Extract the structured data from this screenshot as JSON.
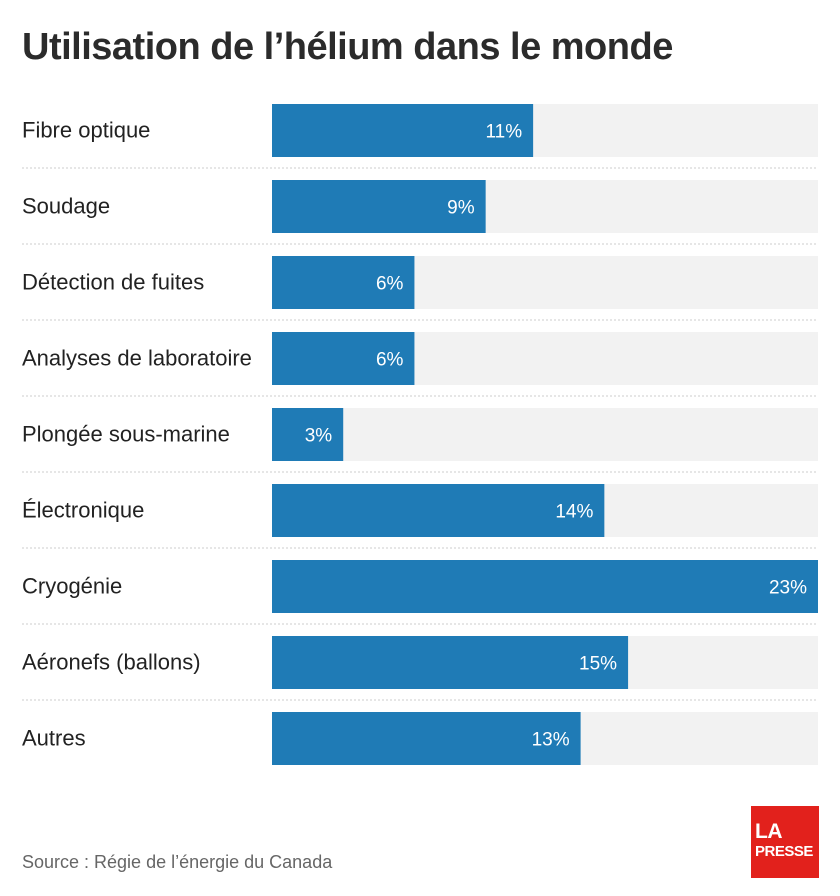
{
  "title": "Utilisation de l’hélium dans le monde",
  "source": "Source : Régie de l’énergie du Canada",
  "logo": {
    "line1": "LA",
    "line2": "PRESSE"
  },
  "colors": {
    "bar": "#1f7bb6",
    "track": "#f2f2f2",
    "divider": "#cccccc",
    "logo": "#e2211c"
  },
  "chart_data": {
    "type": "bar",
    "orientation": "horizontal",
    "categories": [
      "Fibre optique",
      "Soudage",
      "Détection de fuites",
      "Analyses de laboratoire",
      "Plongée sous-marine",
      "Électronique",
      "Cryogénie",
      "Aéronefs (ballons)",
      "Autres"
    ],
    "values": [
      11,
      9,
      6,
      6,
      3,
      14,
      23,
      15,
      13
    ],
    "value_labels": [
      "11%",
      "9%",
      "6%",
      "6%",
      "3%",
      "14%",
      "23%",
      "15%",
      "13%"
    ],
    "xlim": [
      0,
      23
    ],
    "unit": "%",
    "grid": false,
    "legend": "none"
  }
}
